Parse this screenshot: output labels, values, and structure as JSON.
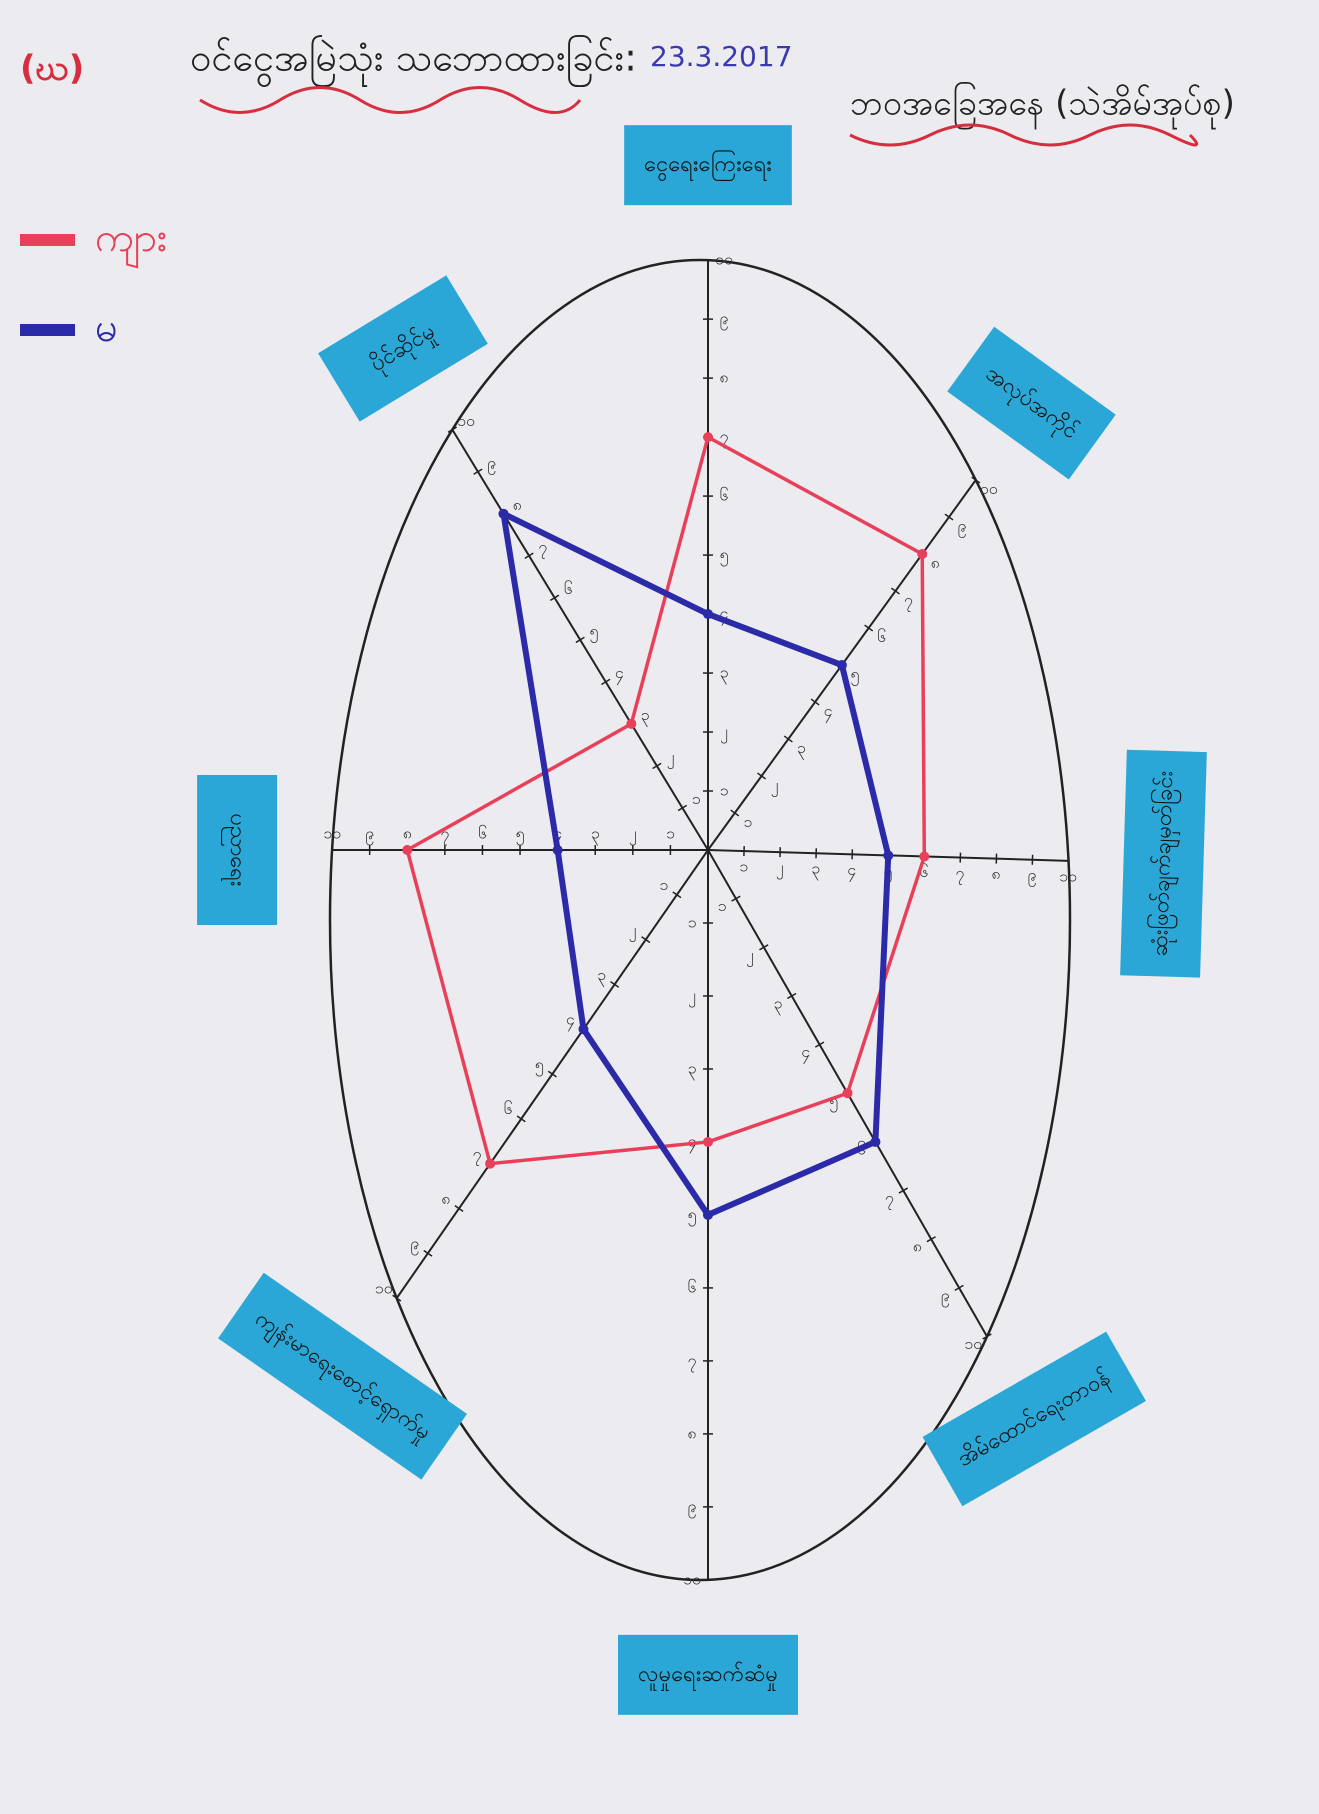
{
  "chart_data": {
    "type": "radar",
    "label": "(ဃ)",
    "title": "ဝင်ငွေအမြဲသုံး သဘောထားခြင်း:",
    "date": "23.3.2017",
    "subtitle": "ဘဝအခြေအနေ (သဲအိမ်အုပ်စု)",
    "categories": [
      "ငွေရေးကြေးရေး",
      "အလုပ်အကိုင်",
      "ဆုံးဖြတ်ချက်ချမှတ်ခြင်း",
      "အိမ်ထောင်ရေးတာဝန်",
      "လူမှုရေးဆက်ဆံမှု",
      "ကျန်းမာရေးစောင့်ရှောက်မှု",
      "ပညာရေး",
      "ပိုင်ဆိုင်မှု"
    ],
    "rlim": [
      0,
      10
    ],
    "rticks": [
      {
        "value": 1,
        "label": "၁"
      },
      {
        "value": 2,
        "label": "၂"
      },
      {
        "value": 3,
        "label": "၃"
      },
      {
        "value": 4,
        "label": "၄"
      },
      {
        "value": 5,
        "label": "၅"
      },
      {
        "value": 6,
        "label": "၆"
      },
      {
        "value": 7,
        "label": "၇"
      },
      {
        "value": 8,
        "label": "၈"
      },
      {
        "value": 9,
        "label": "၉"
      },
      {
        "value": 10,
        "label": "၁၀"
      }
    ],
    "series": [
      {
        "name": "ကျား",
        "color": "#e8405a",
        "values": [
          7,
          8,
          6,
          5,
          4,
          7,
          8,
          3
        ]
      },
      {
        "name": "မ",
        "color": "#2b2aa8",
        "values": [
          4,
          5,
          5,
          6,
          5,
          4,
          4,
          8
        ]
      }
    ],
    "legend": "top-left",
    "sticker_color": "#2aa7d6"
  }
}
